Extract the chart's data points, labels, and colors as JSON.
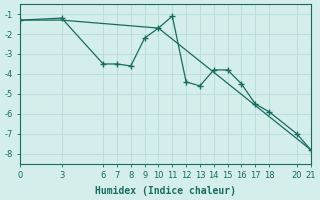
{
  "xlabel": "Humidex (Indice chaleur)",
  "background_color": "#d4eeeb",
  "line_color": "#1a6b5e",
  "grid_color": "#b8dbd8",
  "x_ticks": [
    0,
    3,
    6,
    7,
    8,
    9,
    10,
    11,
    12,
    13,
    14,
    15,
    16,
    17,
    18,
    20,
    21
  ],
  "series1_x": [
    0,
    3,
    6,
    7,
    8,
    9,
    10,
    11,
    12,
    13,
    14,
    15,
    16,
    17,
    18,
    20,
    21
  ],
  "series1_y": [
    -1.3,
    -1.2,
    -3.5,
    -3.5,
    -3.6,
    -2.2,
    -1.7,
    -1.1,
    -4.4,
    -4.6,
    -3.8,
    -3.8,
    -4.5,
    -5.5,
    -5.9,
    -7.0,
    -7.8
  ],
  "series2_x": [
    0,
    3,
    10,
    21
  ],
  "series2_y": [
    -1.3,
    -1.3,
    -1.7,
    -7.8
  ],
  "xlim": [
    0,
    21
  ],
  "ylim": [
    -8.5,
    -0.5
  ],
  "yticks": [
    -1,
    -2,
    -3,
    -4,
    -5,
    -6,
    -7,
    -8
  ]
}
